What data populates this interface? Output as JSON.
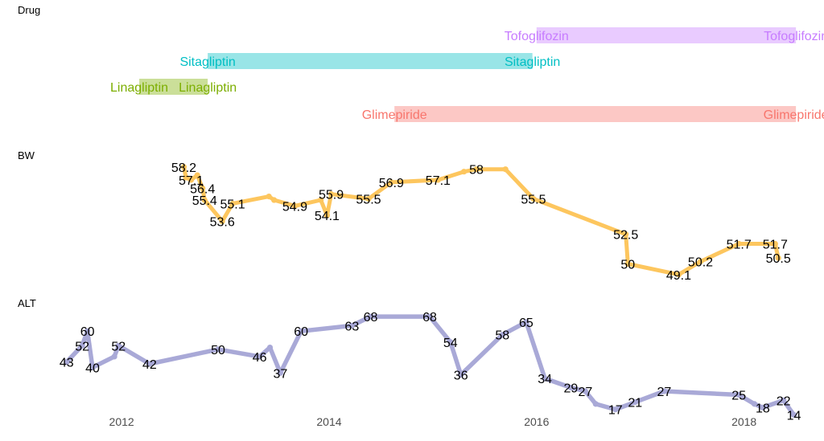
{
  "chart_data": {
    "type": "timeline-line",
    "x_range": [
      2011.2,
      2018.6
    ],
    "x_ticks": [
      2012,
      2014,
      2016,
      2018
    ],
    "x_tick_labels": [
      "2012",
      "2014",
      "2016",
      "2018"
    ],
    "grid": false,
    "panels": [
      {
        "name": "Drug",
        "type": "gantt",
        "bars": [
          {
            "drug": "Tofoglifozin",
            "start": 2016.0,
            "end": 2018.5,
            "color": "#C77CFF",
            "label": "Tofoglifozin"
          },
          {
            "drug": "Sitagliptin",
            "start": 2012.83,
            "end": 2015.96,
            "color": "#00BFC4",
            "label": "Sitagliptin"
          },
          {
            "drug": "Linagliptin",
            "start": 2012.17,
            "end": 2012.83,
            "color": "#7CAE00",
            "label": "Linagliptin"
          },
          {
            "drug": "Glimepiride",
            "start": 2014.63,
            "end": 2018.5,
            "color": "#F8766D",
            "label": "Glimepiride"
          }
        ]
      },
      {
        "name": "BW",
        "type": "line",
        "color": "#FDC65E",
        "ylim": [
          48,
          59
        ],
        "points": [
          {
            "x": 2012.6,
            "y": 58.2,
            "label": "58.2"
          },
          {
            "x": 2012.62,
            "y": 57.3,
            "label": ""
          },
          {
            "x": 2012.67,
            "y": 57.1,
            "label": "57.1"
          },
          {
            "x": 2012.73,
            "y": 57.5,
            "label": ""
          },
          {
            "x": 2012.78,
            "y": 56.4,
            "label": "56.4"
          },
          {
            "x": 2012.8,
            "y": 55.4,
            "label": "55.4"
          },
          {
            "x": 2012.97,
            "y": 53.6,
            "label": "53.6"
          },
          {
            "x": 2013.07,
            "y": 55.1,
            "label": "55.1"
          },
          {
            "x": 2013.42,
            "y": 55.7,
            "label": ""
          },
          {
            "x": 2013.47,
            "y": 55.4,
            "label": ""
          },
          {
            "x": 2013.67,
            "y": 54.9,
            "label": "54.9"
          },
          {
            "x": 2013.92,
            "y": 55.4,
            "label": ""
          },
          {
            "x": 2013.98,
            "y": 54.1,
            "label": "54.1"
          },
          {
            "x": 2014.02,
            "y": 55.9,
            "label": "55.9"
          },
          {
            "x": 2014.38,
            "y": 55.5,
            "label": "55.5"
          },
          {
            "x": 2014.6,
            "y": 56.9,
            "label": "56.9"
          },
          {
            "x": 2015.05,
            "y": 57.1,
            "label": "57.1"
          },
          {
            "x": 2015.3,
            "y": 57.8,
            "label": ""
          },
          {
            "x": 2015.42,
            "y": 58,
            "label": "58"
          },
          {
            "x": 2015.7,
            "y": 58.0,
            "label": ""
          },
          {
            "x": 2015.97,
            "y": 55.5,
            "label": "55.5"
          },
          {
            "x": 2016.86,
            "y": 52.5,
            "label": "52.5"
          },
          {
            "x": 2016.88,
            "y": 50,
            "label": "50"
          },
          {
            "x": 2017.37,
            "y": 49.1,
            "label": "49.1"
          },
          {
            "x": 2017.58,
            "y": 50.2,
            "label": "50.2"
          },
          {
            "x": 2017.95,
            "y": 51.7,
            "label": "51.7"
          },
          {
            "x": 2018.3,
            "y": 51.7,
            "label": "51.7"
          },
          {
            "x": 2018.33,
            "y": 50.5,
            "label": "50.5"
          }
        ]
      },
      {
        "name": "ALT",
        "type": "line",
        "color": "#A9A9D7",
        "ylim": [
          12,
          72
        ],
        "points": [
          {
            "x": 2011.47,
            "y": 43,
            "label": "43"
          },
          {
            "x": 2011.62,
            "y": 52,
            "label": "52"
          },
          {
            "x": 2011.67,
            "y": 60,
            "label": "60"
          },
          {
            "x": 2011.72,
            "y": 40,
            "label": "40"
          },
          {
            "x": 2011.93,
            "y": 46,
            "label": ""
          },
          {
            "x": 2011.97,
            "y": 52,
            "label": "52"
          },
          {
            "x": 2012.27,
            "y": 42,
            "label": "42"
          },
          {
            "x": 2012.93,
            "y": 50,
            "label": "50"
          },
          {
            "x": 2013.33,
            "y": 46,
            "label": "46"
          },
          {
            "x": 2013.43,
            "y": 51,
            "label": ""
          },
          {
            "x": 2013.53,
            "y": 37,
            "label": "37"
          },
          {
            "x": 2013.73,
            "y": 60,
            "label": "60"
          },
          {
            "x": 2014.22,
            "y": 63,
            "label": "63"
          },
          {
            "x": 2014.4,
            "y": 68,
            "label": "68"
          },
          {
            "x": 2014.97,
            "y": 68,
            "label": "68"
          },
          {
            "x": 2015.17,
            "y": 54,
            "label": "54"
          },
          {
            "x": 2015.27,
            "y": 36,
            "label": "36"
          },
          {
            "x": 2015.67,
            "y": 58,
            "label": "58"
          },
          {
            "x": 2015.9,
            "y": 65,
            "label": "65"
          },
          {
            "x": 2016.08,
            "y": 34,
            "label": "34"
          },
          {
            "x": 2016.33,
            "y": 29,
            "label": "29"
          },
          {
            "x": 2016.47,
            "y": 27,
            "label": "27"
          },
          {
            "x": 2016.57,
            "y": 20,
            "label": ""
          },
          {
            "x": 2016.76,
            "y": 17,
            "label": "17"
          },
          {
            "x": 2016.95,
            "y": 21,
            "label": "21"
          },
          {
            "x": 2017.23,
            "y": 27,
            "label": "27"
          },
          {
            "x": 2017.95,
            "y": 25,
            "label": "25"
          },
          {
            "x": 2018.1,
            "y": 20,
            "label": ""
          },
          {
            "x": 2018.18,
            "y": 18,
            "label": "18"
          },
          {
            "x": 2018.38,
            "y": 22,
            "label": "22"
          },
          {
            "x": 2018.48,
            "y": 14,
            "label": "14"
          }
        ]
      }
    ]
  }
}
